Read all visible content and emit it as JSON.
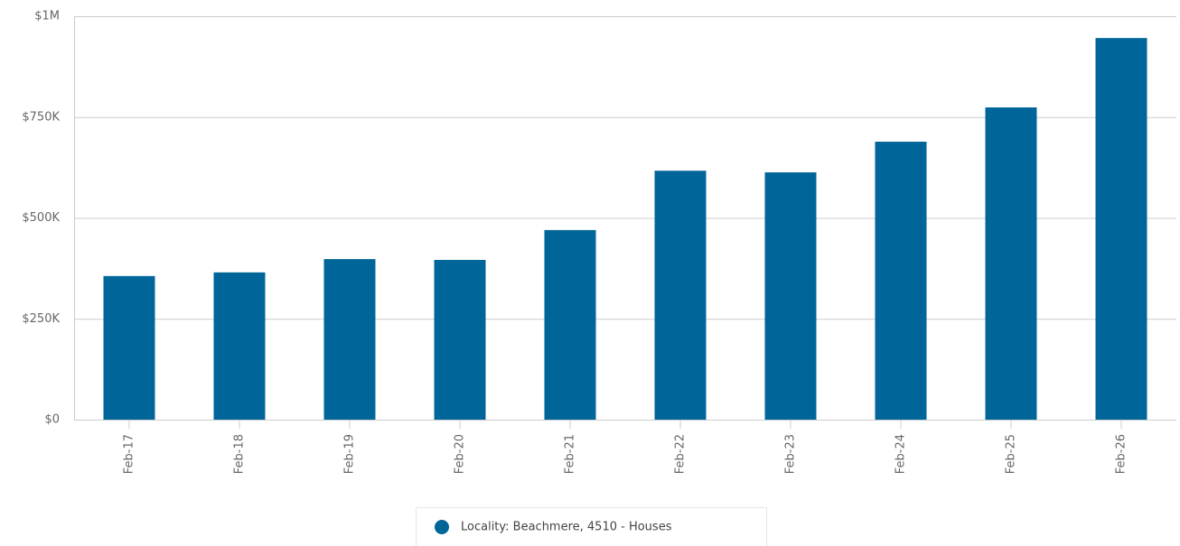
{
  "chart_data": {
    "type": "bar",
    "categories": [
      "Feb-17",
      "Feb-18",
      "Feb-19",
      "Feb-20",
      "Feb-21",
      "Feb-22",
      "Feb-23",
      "Feb-24",
      "Feb-25",
      "Feb-26"
    ],
    "series": [
      {
        "name": "Locality: Beachmere, 4510 - Houses",
        "color": "#006699",
        "values": [
          356000,
          365000,
          398000,
          396000,
          470000,
          617000,
          613000,
          689000,
          774000,
          946000
        ]
      }
    ],
    "ylim": [
      0,
      1000000
    ],
    "yticks": [
      {
        "value": 0,
        "label": "$0"
      },
      {
        "value": 250000,
        "label": "$250K"
      },
      {
        "value": 500000,
        "label": "$500K"
      },
      {
        "value": 750000,
        "label": "$750K"
      },
      {
        "value": 1000000,
        "label": "$1M"
      }
    ],
    "grid": true,
    "legend": "bottom"
  }
}
